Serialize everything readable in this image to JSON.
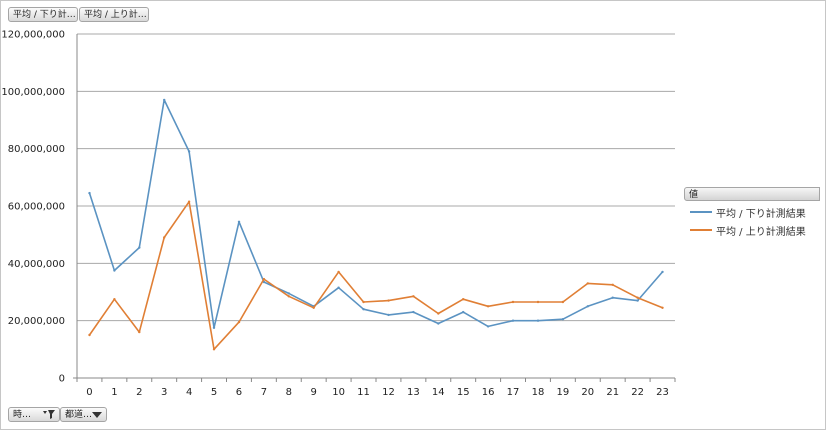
{
  "field_buttons": {
    "top_1": "平均 / 下り計…",
    "top_2": "平均 / 上り計…",
    "bottom_1": "時…",
    "bottom_2": "都道…"
  },
  "legend": {
    "title": "値"
  },
  "icons": {
    "filter": "filter-funnel-icon",
    "dropdown": "dropdown-arrow-icon"
  },
  "chart_data": {
    "type": "line",
    "title": "",
    "xlabel": "",
    "ylabel": "",
    "categories": [
      "0",
      "1",
      "2",
      "3",
      "4",
      "5",
      "6",
      "7",
      "8",
      "9",
      "10",
      "11",
      "12",
      "13",
      "14",
      "15",
      "16",
      "17",
      "18",
      "19",
      "20",
      "21",
      "22",
      "23"
    ],
    "ylim": [
      0,
      120000000
    ],
    "yticks": [
      0,
      20000000,
      40000000,
      60000000,
      80000000,
      100000000,
      120000000
    ],
    "ytick_labels": [
      "0",
      "20,000,000",
      "40,000,000",
      "60,000,000",
      "80,000,000",
      "100,000,000",
      "120,000,000"
    ],
    "grid": true,
    "legend_position": "right",
    "series": [
      {
        "name": "平均 / 下り計測結果",
        "color": "#5b93c2",
        "values": [
          64500000,
          37500000,
          45500000,
          97000000,
          79000000,
          17500000,
          54500000,
          33500000,
          29500000,
          25000000,
          31500000,
          24000000,
          22000000,
          23000000,
          19000000,
          23000000,
          18000000,
          20000000,
          20000000,
          20500000,
          25000000,
          28000000,
          27000000,
          37000000
        ]
      },
      {
        "name": "平均 / 上り計測結果",
        "color": "#e07f35",
        "values": [
          15000000,
          27500000,
          16000000,
          49000000,
          61500000,
          10000000,
          19500000,
          34500000,
          28500000,
          24500000,
          37000000,
          26500000,
          27000000,
          28500000,
          22500000,
          27500000,
          25000000,
          26500000,
          26500000,
          26500000,
          33000000,
          32500000,
          28000000,
          24500000
        ]
      }
    ]
  }
}
